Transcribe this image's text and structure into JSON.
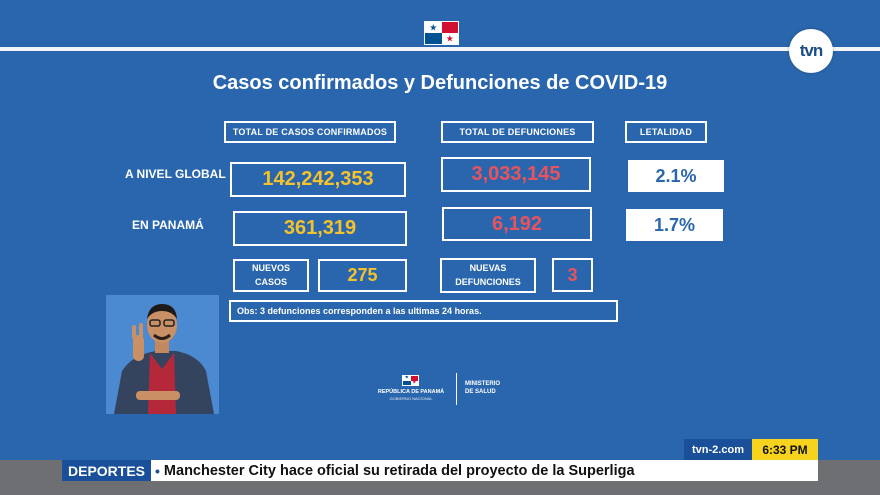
{
  "title": "Casos confirmados y Defunciones de COVID-19",
  "headers": {
    "total_casos": "TOTAL DE CASOS CONFIRMADOS",
    "total_defunciones": "TOTAL DE DEFUNCIONES",
    "letalidad": "LETALIDAD"
  },
  "global": {
    "label": "A NIVEL GLOBAL",
    "casos": "142,242,353",
    "defunciones": "3,033,145",
    "letalidad": "2.1%"
  },
  "panama": {
    "label": "EN PANAMÁ",
    "casos": "361,319",
    "defunciones": "6,192",
    "letalidad": "1.7%"
  },
  "nuevos": {
    "casos_label_1": "NUEVOS",
    "casos_label_2": "CASOS",
    "casos_value": "275",
    "def_label_1": "NUEVAS",
    "def_label_2": "DEFUNCIONES",
    "def_value": "3"
  },
  "observation": "Obs: 3 defunciones corresponden a las ultimas 24 horas.",
  "footer_logo": {
    "republica": "REPÚBLICA DE PANAMÁ",
    "gobierno": "GOBIERNO NACIONAL",
    "ministerio_1": "MINISTERIO",
    "ministerio_2": "DE SALUD"
  },
  "broadcast": {
    "channel_logo": "tvn",
    "website": "tvn-2.com",
    "time": "6:33 PM",
    "section": "DEPORTES",
    "bullet": "•",
    "headline": "Manchester City hace oficial su retirada del proyecto de la Superliga"
  },
  "colors": {
    "background": "#2a66ad",
    "cases": "#f4c22b",
    "deaths": "#e8535d",
    "clock": "#f6d31d",
    "ticker_section": "#1a4f99"
  },
  "icons": {
    "flag": "panama-flag-icon",
    "logo": "tvn-logo-icon"
  }
}
